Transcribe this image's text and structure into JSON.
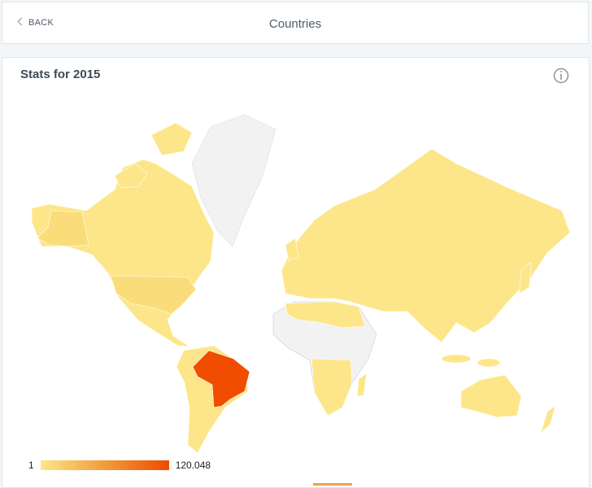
{
  "header": {
    "back": "BACK",
    "title": "Countries"
  },
  "card": {
    "title": "Stats for 2015",
    "legend": {
      "min": "1",
      "max": "120.048"
    }
  }
}
